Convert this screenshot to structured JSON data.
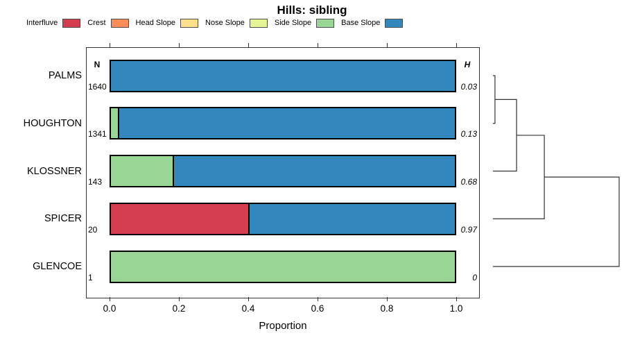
{
  "title": "Hills: sibling",
  "legend": {
    "items": [
      {
        "label": "Interfluve",
        "color": "#d53e4f"
      },
      {
        "label": "Crest",
        "color": "#fc8d59"
      },
      {
        "label": "Head Slope",
        "color": "#fee08b"
      },
      {
        "label": "Nose Slope",
        "color": "#e6f598"
      },
      {
        "label": "Side Slope",
        "color": "#99d594"
      },
      {
        "label": "Base Slope",
        "color": "#3288bd"
      }
    ]
  },
  "columns": {
    "n_header": "N",
    "h_header": "H"
  },
  "axis": {
    "xlabel": "Proportion",
    "tick_labels": [
      "0.0",
      "0.2",
      "0.4",
      "0.6",
      "0.8",
      "1.0"
    ]
  },
  "chart_data": {
    "type": "bar",
    "orientation": "horizontal",
    "stacked": true,
    "title": "Hills: sibling",
    "xlabel": "Proportion",
    "xlim": [
      0,
      1
    ],
    "xticks": [
      0.0,
      0.2,
      0.4,
      0.6,
      0.8,
      1.0
    ],
    "legend_position": "top",
    "grid": false,
    "classes": [
      "Interfluve",
      "Crest",
      "Head Slope",
      "Nose Slope",
      "Side Slope",
      "Base Slope"
    ],
    "categories": [
      "PALMS",
      "HOUGHTON",
      "KLOSSNER",
      "SPICER",
      "GLENCOE"
    ],
    "rows": [
      {
        "label": "PALMS",
        "n": "1640",
        "h": "0.03",
        "segments": [
          {
            "class": "Base Slope",
            "value": 1.0
          }
        ]
      },
      {
        "label": "HOUGHTON",
        "n": "1341",
        "h": "0.13",
        "segments": [
          {
            "class": "Side Slope",
            "value": 0.02
          },
          {
            "class": "Base Slope",
            "value": 0.98
          }
        ]
      },
      {
        "label": "KLOSSNER",
        "n": "143",
        "h": "0.68",
        "segments": [
          {
            "class": "Side Slope",
            "value": 0.18
          },
          {
            "class": "Base Slope",
            "value": 0.82
          }
        ]
      },
      {
        "label": "SPICER",
        "n": "20",
        "h": "0.97",
        "segments": [
          {
            "class": "Interfluve",
            "value": 0.4
          },
          {
            "class": "Base Slope",
            "value": 0.6
          }
        ]
      },
      {
        "label": "GLENCOE",
        "n": "1",
        "h": "0",
        "segments": [
          {
            "class": "Side Slope",
            "value": 1.0
          }
        ]
      }
    ],
    "dendrogram": {
      "leaves": [
        "PALMS",
        "HOUGHTON",
        "KLOSSNER",
        "SPICER",
        "GLENCOE"
      ],
      "merges": [
        {
          "a": "PALMS",
          "b": "HOUGHTON",
          "depth": 0.016
        },
        {
          "a": "M0",
          "b": "KLOSSNER",
          "depth": 0.187
        },
        {
          "a": "M1",
          "b": "SPICER",
          "depth": 0.407
        },
        {
          "a": "M2",
          "b": "GLENCOE",
          "depth": 1.0
        }
      ]
    }
  }
}
